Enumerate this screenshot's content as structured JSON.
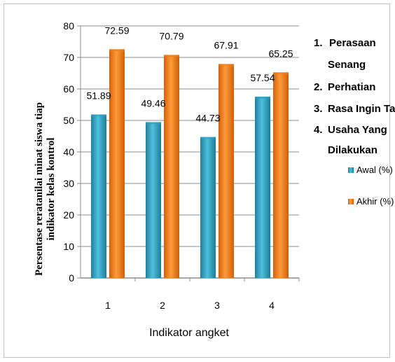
{
  "chart_data": {
    "type": "bar",
    "categories": [
      "1",
      "2",
      "3",
      "4"
    ],
    "series": [
      {
        "name": "Awal (%)",
        "values": [
          51.89,
          49.46,
          44.73,
          57.54
        ],
        "color": "#2e9fbf"
      },
      {
        "name": "Akhir (%)",
        "values": [
          72.59,
          70.79,
          67.91,
          65.25
        ],
        "color": "#f07f1a"
      }
    ],
    "data_labels": [
      [
        "51.89",
        "49.46",
        "44.73",
        "57.54"
      ],
      [
        "72.59",
        "70.79",
        "67.91",
        "65.25"
      ]
    ],
    "xlabel": "Indikator  angket",
    "ylabel_line1": "Persentase reratanilai minat siswa tiap",
    "ylabel_line2": "indikator kelas  kontrol",
    "ylim": [
      0,
      80
    ],
    "yticks": [
      "0",
      "10",
      "20",
      "30",
      "40",
      "50",
      "60",
      "70",
      "80"
    ],
    "grid": true,
    "legend_position": "right"
  },
  "notes": [
    {
      "number": "1.",
      "line1": "Perasaan",
      "line2": "Senang"
    },
    {
      "number": "2.",
      "line1": "Perhatian",
      "line2": ""
    },
    {
      "number": "3.",
      "line1": "Rasa Ingin Tahu",
      "line2": ""
    },
    {
      "number": "4.",
      "line1": "Usaha Yang",
      "line2": "Dilakukan"
    }
  ]
}
